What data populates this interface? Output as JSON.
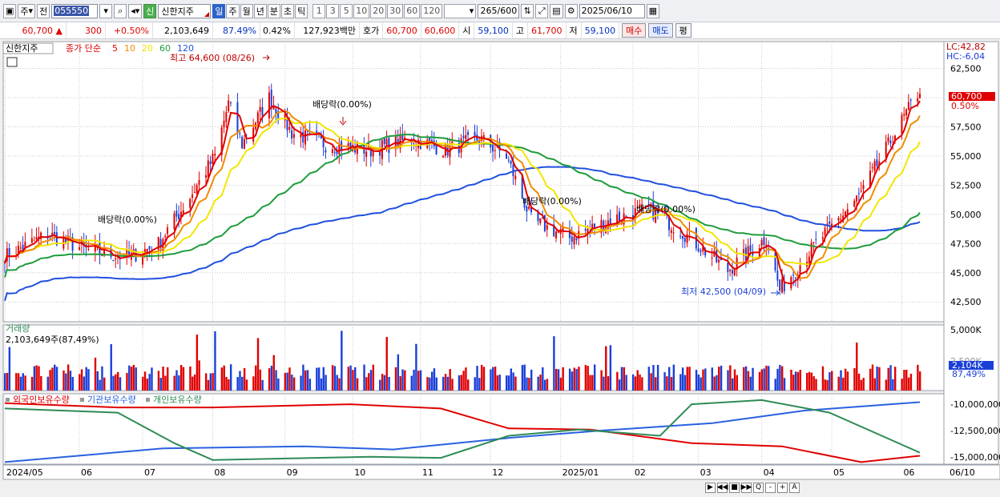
{
  "toolbar": {
    "market": "주",
    "prev": "전",
    "code": "055550",
    "name": "신한지주",
    "badge": "신",
    "periods": [
      "일",
      "주",
      "월",
      "년",
      "분",
      "초",
      "틱"
    ],
    "selected_period": "일",
    "steps": [
      "1",
      "3",
      "5",
      "10",
      "20",
      "30",
      "60",
      "120"
    ],
    "count": "265",
    "max": "/600",
    "date": "2025/06/10"
  },
  "quote": {
    "price": "60,700",
    "change": "300",
    "change_pct": "+0.50%",
    "volume": "2,103,649",
    "volume_pct": "87.49%",
    "turnover_pct": "0.42%",
    "amount": "127,923백만",
    "ask_label": "호가",
    "ask": "60,700",
    "bid": "60,600",
    "open_label": "시",
    "open": "59,100",
    "high_label": "고",
    "high": "61,700",
    "low_label": "저",
    "low": "59,100",
    "buy": "매수",
    "sell": "매도",
    "eval": "평"
  },
  "colors": {
    "up": "#e00000",
    "down": "#1a3fd8",
    "ma5": "#e00000",
    "ma10": "#f08c00",
    "ma20": "#f2e600",
    "ma60": "#1e9c3c",
    "ma120": "#2050e0",
    "inst": "#2a60e0",
    "retail": "#2e8b57"
  },
  "chart_data": [
    {
      "type": "line",
      "panel": "price",
      "title": "신한지주",
      "legend_title": "종가 단순",
      "legend": [
        "5",
        "10",
        "20",
        "60",
        "120"
      ],
      "x_ticks": [
        "2024/05",
        "06",
        "07",
        "08",
        "09",
        "10",
        "11",
        "12",
        "2025/01",
        "02",
        "03",
        "04",
        "05",
        "06",
        "06/10"
      ],
      "y_ticks": [
        "62,500",
        "60,000",
        "57,500",
        "55,000",
        "52,500",
        "50,000",
        "47,500",
        "45,000",
        "42,500"
      ],
      "ylim": [
        40800,
        64800
      ],
      "top_right": [
        "LC:42,82",
        "HC:-6,04"
      ],
      "last_price_label": "60,700",
      "last_pct_label": "0.50%",
      "annotations": {
        "high": "최고 64,600 (08/26)",
        "low": "최저 42,500 (04/09)",
        "dividends": [
          "배당락(0.00%)",
          "배당락(0.00%)",
          "배당락(0.00%)",
          "배당락(0.00%)"
        ]
      },
      "series_close": [
        {
          "x": "2024-05-02",
          "y": 46500
        },
        {
          "x": "2024-05-20",
          "y": 48300
        },
        {
          "x": "2024-06-05",
          "y": 47000
        },
        {
          "x": "2024-06-25",
          "y": 46300
        },
        {
          "x": "2024-07-08",
          "y": 47500
        },
        {
          "x": "2024-07-22",
          "y": 51500
        },
        {
          "x": "2024-08-02",
          "y": 55000
        },
        {
          "x": "2024-08-08",
          "y": 59500
        },
        {
          "x": "2024-08-14",
          "y": 56000
        },
        {
          "x": "2024-08-26",
          "y": 60000
        },
        {
          "x": "2024-09-05",
          "y": 57000
        },
        {
          "x": "2024-09-20",
          "y": 56000
        },
        {
          "x": "2024-10-10",
          "y": 55500
        },
        {
          "x": "2024-10-28",
          "y": 56500
        },
        {
          "x": "2024-11-12",
          "y": 55500
        },
        {
          "x": "2024-11-27",
          "y": 56500
        },
        {
          "x": "2024-12-09",
          "y": 55000
        },
        {
          "x": "2024-12-20",
          "y": 49500
        },
        {
          "x": "2025-01-06",
          "y": 48000
        },
        {
          "x": "2025-01-24",
          "y": 49500
        },
        {
          "x": "2025-02-10",
          "y": 50500
        },
        {
          "x": "2025-02-25",
          "y": 48500
        },
        {
          "x": "2025-03-17",
          "y": 45200
        },
        {
          "x": "2025-04-03",
          "y": 48000
        },
        {
          "x": "2025-04-09",
          "y": 43500
        },
        {
          "x": "2025-04-25",
          "y": 47500
        },
        {
          "x": "2025-05-14",
          "y": 51500
        },
        {
          "x": "2025-06-10",
          "y": 60700
        }
      ]
    },
    {
      "type": "bar",
      "panel": "volume",
      "title": "거래량",
      "value_label": "2,103,649주(87,49%)",
      "y_ticks": [
        "5,000K",
        "2,500K"
      ],
      "last_label": "2,104K",
      "last_pct": "87,49%",
      "ylim": [
        0,
        5000
      ]
    },
    {
      "type": "line",
      "panel": "holdings",
      "legend": [
        "외국인보유수량",
        "기관보유수량",
        "개인보유수량"
      ],
      "y_ticks": [
        "-10,000,000",
        "-12,500,000",
        "-15,000,000"
      ],
      "ylim": [
        -15700000,
        -9000000
      ]
    }
  ],
  "nav": [
    "▶",
    "◀◀",
    "■",
    "▶▶",
    "Q",
    "-",
    "+",
    "A"
  ]
}
